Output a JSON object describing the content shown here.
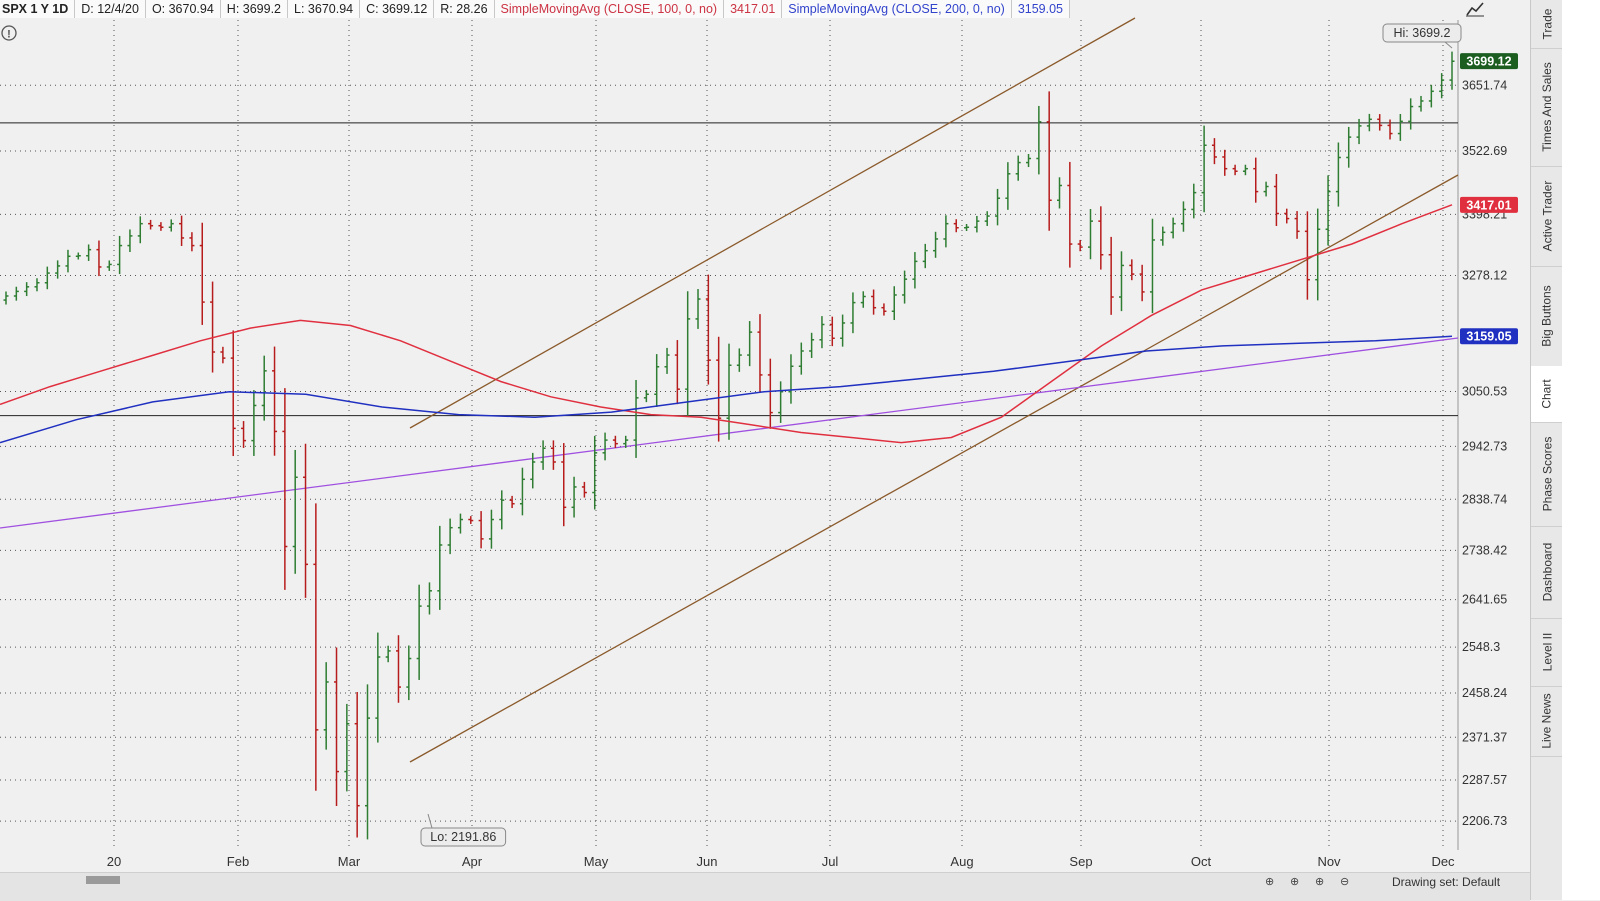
{
  "infobar": {
    "symbol": "SPX 1 Y 1D",
    "date": "D: 12/4/20",
    "open": "O: 3670.94",
    "high": "H: 3699.2",
    "low": "L: 3670.94",
    "close": "C: 3699.12",
    "range": "R: 28.26",
    "sma100_label": "SimpleMovingAvg (CLOSE, 100, 0, no)",
    "sma100_value": "3417.01",
    "sma200_label": "SimpleMovingAvg (CLOSE, 200, 0, no)",
    "sma200_value": "3159.05"
  },
  "side_tabs": [
    "Trade",
    "Times And Sales",
    "Active Trader",
    "Big Buttons",
    "Chart",
    "Phase Scores",
    "Dashboard",
    "Level II",
    "Live News"
  ],
  "active_tab": "Chart",
  "bottom": {
    "drawing_set": "Drawing set: Default"
  },
  "icons": [
    "info-icon",
    "drawing-tools-icon",
    "zoom-in-icon",
    "zoom-out-icon",
    "crosshair-icon"
  ],
  "colors": {
    "up_bar": "#2e7d32",
    "down_bar": "#b71c1c",
    "sma100": "#e03040",
    "sma200": "#2030c0",
    "trendline_channel": "#8b5a2b",
    "trendline_long": "#a050e0",
    "last_price_bg": "#1b5e20"
  },
  "chart_data": {
    "type": "ohlc",
    "x_tick_labels": [
      "20",
      "Feb",
      "Mar",
      "Apr",
      "May",
      "Jun",
      "Jul",
      "Aug",
      "Sep",
      "Oct",
      "Nov",
      "Dec"
    ],
    "y_tick_labels": [
      "3651.74",
      "3522.69",
      "3398.21",
      "3278.12",
      "3050.53",
      "2942.73",
      "2838.74",
      "2738.42",
      "2641.65",
      "2548.3",
      "2458.24",
      "2371.37",
      "2287.57",
      "2206.73"
    ],
    "ylim": [
      2150,
      3780
    ],
    "high_label": "Hi: 3699.2",
    "low_label": "Lo: 2191.86",
    "last_price": "3699.12",
    "sma100_price": "3417.01",
    "sma200_price": "3159.05",
    "horizontal_lines": [
      3578,
      3003
    ],
    "closes_approx": [
      3238,
      3247,
      3256,
      3264,
      3283,
      3297,
      3316,
      3317,
      3329,
      3295,
      3300,
      3337,
      3356,
      3380,
      3376,
      3373,
      3380,
      3352,
      3337,
      3226,
      3128,
      3116,
      2978,
      2954,
      3023,
      3091,
      2972,
      2746,
      2882,
      2711,
      2386,
      2480,
      2304,
      2398,
      2237,
      2409,
      2529,
      2541,
      2470,
      2526,
      2629,
      2659,
      2749,
      2783,
      2799,
      2797,
      2761,
      2799,
      2837,
      2830,
      2878,
      2912,
      2939,
      2912,
      2823,
      2863,
      2852,
      2930,
      2955,
      2948,
      2955,
      3038,
      3045,
      3099,
      3122,
      3055,
      3193,
      3232,
      3112,
      2998,
      3102,
      3122,
      3167,
      3083,
      3009,
      3050,
      3100,
      3130,
      3152,
      3182,
      3155,
      3185,
      3225,
      3237,
      3215,
      3208,
      3240,
      3271,
      3306,
      3327,
      3350,
      3380,
      3372,
      3373,
      3385,
      3395,
      3430,
      3478,
      3500,
      3508,
      3580,
      3426,
      3455,
      3340,
      3334,
      3385,
      3319,
      3236,
      3298,
      3281,
      3246,
      3348,
      3363,
      3380,
      3408,
      3441,
      3534,
      3511,
      3488,
      3483,
      3488,
      3443,
      3453,
      3400,
      3390,
      3365,
      3270,
      3369,
      3443,
      3510,
      3550,
      3572,
      3585,
      3573,
      3557,
      3581,
      3610,
      3621,
      3640,
      3662,
      3699
    ],
    "sma100_approx": [
      3025,
      3060,
      3090,
      3120,
      3150,
      3175,
      3190,
      3180,
      3150,
      3110,
      3070,
      3040,
      3020,
      3005,
      3000,
      2985,
      2970,
      2960,
      2950,
      2960,
      3000,
      3070,
      3140,
      3200,
      3250,
      3280,
      3310,
      3340,
      3380,
      3417
    ],
    "sma200_approx": [
      2950,
      2995,
      3030,
      3050,
      3045,
      3020,
      3005,
      3000,
      3010,
      3030,
      3050,
      3060,
      3075,
      3090,
      3110,
      3130,
      3140,
      3145,
      3150,
      3159
    ],
    "sma_labels": {
      "sma100": "3417.01",
      "sma200": "3159.05"
    }
  }
}
